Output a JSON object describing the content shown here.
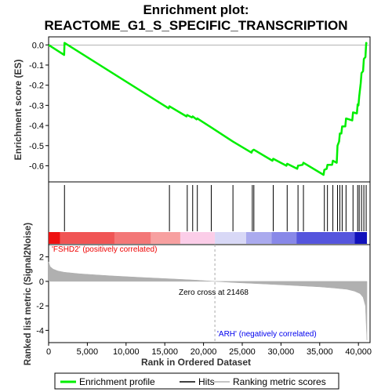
{
  "title_line1": "Enrichment plot:",
  "title_line2": "REACTOME_G1_S_SPECIFIC_TRANSCRIPTION",
  "chart_data": {
    "type": "line",
    "es_panel": {
      "ylabel": "Enrichment score (ES)",
      "ylim": [
        -0.68,
        0.04
      ],
      "yticks": [
        0.0,
        -0.1,
        -0.2,
        -0.3,
        -0.4,
        -0.5,
        -0.6
      ],
      "ytick_labels": [
        "0.0",
        "-0.1",
        "-0.2",
        "-0.3",
        "-0.4",
        "-0.5",
        "-0.6"
      ],
      "series": [
        {
          "name": "Enrichment profile",
          "color": "#00ee00",
          "x": [
            0,
            2000,
            2050,
            15500,
            15600,
            17800,
            17900,
            18500,
            18600,
            19100,
            19200,
            21000,
            23800,
            26200,
            26300,
            26500,
            28900,
            29000,
            30700,
            30800,
            32100,
            32200,
            32800,
            32900,
            35500,
            35600,
            35900,
            36000,
            36600,
            36700,
            37200,
            37300,
            37500,
            37600,
            37800,
            37900,
            38300,
            38400,
            39200,
            39300,
            39800,
            39900,
            40000,
            40100,
            40300,
            40400,
            40600,
            40700,
            40900,
            41000,
            41100
          ],
          "y": [
            0.0,
            -0.05,
            0.01,
            -0.315,
            -0.305,
            -0.355,
            -0.348,
            -0.36,
            -0.355,
            -0.37,
            -0.365,
            -0.41,
            -0.48,
            -0.535,
            -0.525,
            -0.52,
            -0.575,
            -0.565,
            -0.6,
            -0.59,
            -0.615,
            -0.6,
            -0.595,
            -0.585,
            -0.645,
            -0.62,
            -0.615,
            -0.595,
            -0.595,
            -0.575,
            -0.585,
            -0.5,
            -0.48,
            -0.44,
            -0.44,
            -0.405,
            -0.405,
            -0.365,
            -0.375,
            -0.335,
            -0.34,
            -0.295,
            -0.3,
            -0.255,
            -0.19,
            -0.14,
            -0.13,
            -0.07,
            -0.06,
            0.01,
            0.005
          ]
        }
      ]
    },
    "hits": {
      "name": "Hits",
      "x": [
        2050,
        15600,
        17900,
        18600,
        19200,
        21000,
        23800,
        26300,
        26500,
        29000,
        30800,
        32200,
        32900,
        35600,
        36000,
        36700,
        37300,
        37600,
        37900,
        38400,
        39300,
        39900,
        40100,
        40400,
        40700,
        41000
      ]
    },
    "ranking_panel": {
      "ylabel": "Ranked list metric (Signal2Noise)",
      "ylim": [
        -5,
        3
      ],
      "yticks": [
        2,
        0,
        -2,
        -4
      ],
      "ytick_labels": [
        "2",
        "0",
        "-2",
        "-4"
      ],
      "xlabel": "Rank in Ordered Dataset",
      "xlim": [
        0,
        41500
      ],
      "xticks": [
        0,
        5000,
        10000,
        15000,
        20000,
        25000,
        30000,
        35000,
        40000
      ],
      "xtick_labels": [
        "0",
        "5,000",
        "10,000",
        "15,000",
        "20,000",
        "25,000",
        "30,000",
        "35,000",
        "40,000"
      ],
      "metric_x": [
        0,
        200,
        600,
        1200,
        2000,
        4000,
        8000,
        12000,
        16000,
        19000,
        21468,
        24000,
        28000,
        32000,
        35000,
        37000,
        38500,
        39500,
        40200,
        40600,
        40900,
        41000,
        41100
      ],
      "metric_y": [
        1.6,
        1.2,
        1.0,
        0.85,
        0.75,
        0.62,
        0.45,
        0.32,
        0.2,
        0.1,
        0.0,
        -0.1,
        -0.22,
        -0.35,
        -0.45,
        -0.55,
        -0.65,
        -0.8,
        -1.0,
        -1.3,
        -2.0,
        -3.5,
        -4.8
      ],
      "fill_color": "#b0b0b0",
      "zero_cross_rank": 21468,
      "zero_cross_label": "Zero cross at 21468",
      "positive_label": "'FSHD2' (positively correlated)",
      "negative_label": "'ARH' (negatively correlated)",
      "positive_color": "#ff0000",
      "negative_color": "#0000ff"
    },
    "heatbar": {
      "segments": [
        {
          "from": 0,
          "to": 1500,
          "color": "#ee1111"
        },
        {
          "from": 1500,
          "to": 8500,
          "color": "#f05555"
        },
        {
          "from": 8500,
          "to": 13200,
          "color": "#f37777"
        },
        {
          "from": 13200,
          "to": 17000,
          "color": "#f7a0a0"
        },
        {
          "from": 17000,
          "to": 21468,
          "color": "#fbcde8"
        },
        {
          "from": 21468,
          "to": 25500,
          "color": "#d8d8f6"
        },
        {
          "from": 25500,
          "to": 28800,
          "color": "#aaaaee"
        },
        {
          "from": 28800,
          "to": 32000,
          "color": "#8888e8"
        },
        {
          "from": 32000,
          "to": 39500,
          "color": "#5555dd"
        },
        {
          "from": 39500,
          "to": 41100,
          "color": "#1111bb"
        }
      ]
    },
    "legend": {
      "placement": "bottom",
      "entries": [
        {
          "label": "Enrichment profile",
          "color": "#00ee00"
        },
        {
          "label": "Hits",
          "color": "#000000"
        },
        {
          "label": "Ranking metric scores",
          "color": "#b0b0b0"
        }
      ]
    }
  }
}
